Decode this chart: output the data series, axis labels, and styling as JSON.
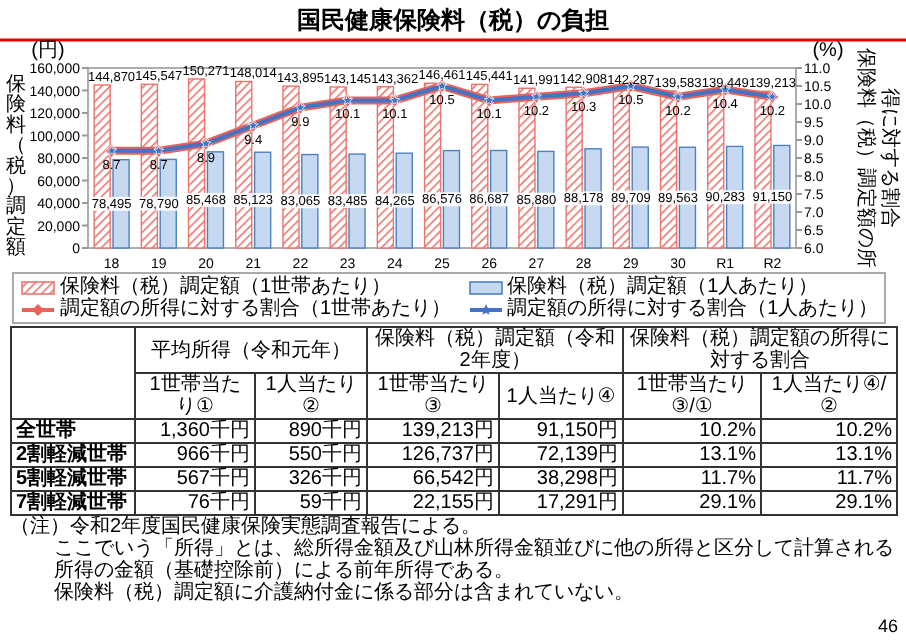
{
  "chart_data": {
    "type": "bar",
    "title": "国民健康保険料（税）の負担",
    "ylabel": "保険料（税）調定額",
    "y2label": "保険料（税）調定額の所得に対する割合",
    "categories": [
      "18",
      "19",
      "20",
      "21",
      "22",
      "23",
      "24",
      "25",
      "26",
      "27",
      "28",
      "29",
      "30",
      "R1",
      "R2"
    ],
    "series": [
      {
        "name": "保険料（税）調定額（1世帯あたり）",
        "color": "#e8766f",
        "values": [
          144870,
          145547,
          150271,
          148014,
          143895,
          143145,
          143362,
          146461,
          145441,
          141991,
          142908,
          142287,
          139583,
          139449,
          139213
        ],
        "value_labels": [
          "144,870",
          "145,547",
          "150,271",
          "148,014",
          "143,895",
          "143,145",
          "143,362",
          "146,461",
          "145,441",
          "141,991",
          "142,908",
          "142,287",
          "139,583",
          "139,449",
          "139,213"
        ]
      },
      {
        "name": "保険料（税）調定額（1人あたり）",
        "color": "#c6d9f0",
        "values": [
          78495,
          78790,
          85468,
          85123,
          83065,
          83485,
          84265,
          86576,
          86687,
          85880,
          88178,
          89709,
          89563,
          90283,
          91150
        ],
        "value_labels": [
          "78,495",
          "78,790",
          "85,468",
          "85,123",
          "83,065",
          "83,485",
          "84,265",
          "86,576",
          "86,687",
          "85,880",
          "88,178",
          "89,709",
          "89,563",
          "90,283",
          "91,150"
        ]
      },
      {
        "name": "調定額の所得に対する割合（1世帯あたり）",
        "type": "line",
        "color": "#e8645a",
        "marker": "diamond",
        "axis": "y2",
        "values": [
          8.7,
          8.7,
          8.9,
          9.4,
          9.9,
          10.1,
          10.1,
          10.5,
          10.1,
          10.2,
          10.3,
          10.5,
          10.2,
          10.4,
          10.2
        ],
        "value_labels": [
          "8.7",
          "8.7",
          "8.9",
          "9.4",
          "9.9",
          "10.1",
          "10.1",
          "10.5",
          "10.1",
          "10.2",
          "10.3",
          "10.5",
          "10.2",
          "10.4",
          "10.2"
        ]
      },
      {
        "name": "調定額の所得に対する割合（1人あたり）",
        "type": "line",
        "color": "#4472c4",
        "marker": "star",
        "axis": "y2",
        "values": [
          8.7,
          8.7,
          8.9,
          9.4,
          9.9,
          10.1,
          10.1,
          10.5,
          10.1,
          10.2,
          10.3,
          10.5,
          10.2,
          10.4,
          10.2
        ]
      }
    ],
    "ylim": [
      0,
      160000
    ],
    "yticks": [
      0,
      {
        "value": 20000,
        "label": "20,000"
      },
      {
        "value": 40000,
        "label": "40,000"
      },
      {
        "value": 60000,
        "label": "60,000"
      },
      {
        "value": 80000,
        "label": "80,000"
      },
      {
        "value": 100000,
        "label": "100,000"
      },
      {
        "value": 120000,
        "label": "120,000"
      },
      {
        "value": 140000,
        "label": "140,000"
      },
      {
        "value": 160000,
        "label": "160,000"
      }
    ],
    "y2lim": [
      6,
      11
    ],
    "y2ticks": [
      {
        "value": 6,
        "label": "6.0"
      },
      {
        "value": 6.5,
        "label": "6.5"
      },
      {
        "value": 7,
        "label": "7.0"
      },
      {
        "value": 7.5,
        "label": "7.5"
      },
      {
        "value": 8,
        "label": "8.0"
      },
      {
        "value": 8.5,
        "label": "8.5"
      },
      {
        "value": 9,
        "label": "9.0"
      },
      {
        "value": 9.5,
        "label": "9.5"
      },
      {
        "value": 10,
        "label": "10.0"
      },
      {
        "value": 10.5,
        "label": "10.5"
      },
      {
        "value": 11,
        "label": "11.0"
      }
    ],
    "grid": false,
    "legend": "bottom left",
    "annotations": [
      "(円)",
      "(%)",
      "平均所得（令和元年）",
      "保険料（税）調定額（令和2年度）",
      "保険料（税）調定額の所得に対する割合",
      "1世帯当たり①",
      "1人当たり②",
      "1世帯当たり③",
      "1人当たり④",
      "1世帯当たり③/①",
      "1人当たり④/②",
      "全世帯",
      "1,360千円",
      "890千円",
      "139,213円",
      "91,150円",
      "10.2%",
      "10.2%",
      "2割軽減世帯",
      "966千円",
      "550千円",
      "126,737円",
      "72,139円",
      "13.1%",
      "13.1%",
      "5割軽減世帯",
      "567千円",
      "326千円",
      "66,542円",
      "38,298円",
      "11.7%",
      "11.7%",
      "7割軽減世帯",
      "76千円",
      "59千円",
      "22,155円",
      "17,291円",
      "29.1%",
      "29.1%",
      "（注）令和2年度国民健康保険実態調査報告による。",
      "ここでいう「所得」とは、総所得金額及び山林所得金額並びに他の所得と区分して計算される所得の金額（基礎控除前）による前年所得である。",
      "保険料（税）調定額に介護納付金に係る部分は含まれていない。",
      "46"
    ]
  }
}
